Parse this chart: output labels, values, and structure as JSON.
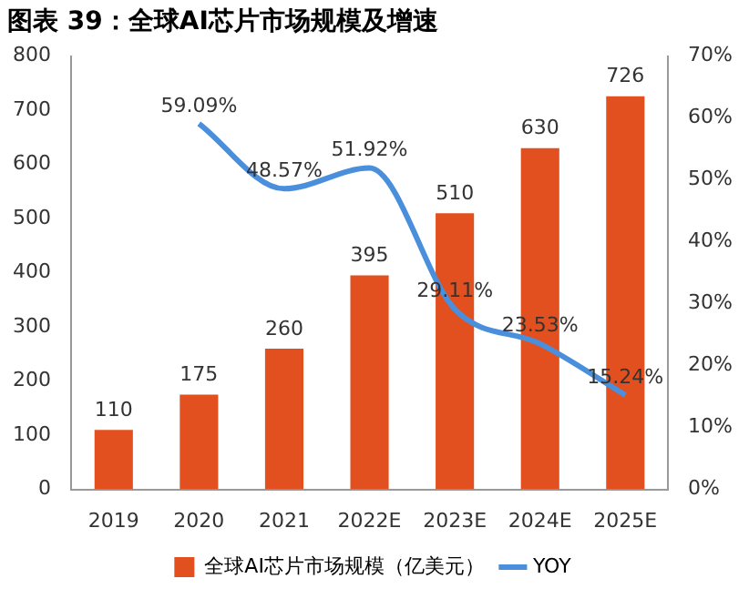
{
  "chart_data": {
    "type": "bar",
    "title": "图表 39：全球AI芯片市场规模及增速",
    "categories": [
      "2019",
      "2020",
      "2021",
      "2022E",
      "2023E",
      "2024E",
      "2025E"
    ],
    "series": [
      {
        "name": "全球AI芯片市场规模（亿美元）",
        "color": "#e2501f",
        "values": [
          110,
          175,
          260,
          395,
          510,
          630,
          726
        ],
        "value_labels": [
          "110",
          "175",
          "260",
          "395",
          "510",
          "630",
          "726"
        ]
      },
      {
        "name": "YOY",
        "type": "line",
        "axis": "y2",
        "color": "#4a8fdc",
        "values": [
          null,
          59.09,
          48.57,
          51.92,
          29.11,
          23.53,
          15.24
        ],
        "value_labels": [
          null,
          "59.09%",
          "48.57%",
          "51.92%",
          "29.11%",
          "23.53%",
          "15.24%"
        ]
      }
    ],
    "ylim": [
      0,
      800
    ],
    "yticks": [
      0,
      100,
      200,
      300,
      400,
      500,
      600,
      700,
      800
    ],
    "y2lim": [
      0,
      70
    ],
    "y2ticks": [
      {
        "value": 0,
        "label": "0%"
      },
      {
        "value": 10,
        "label": "10%"
      },
      {
        "value": 20,
        "label": "20%"
      },
      {
        "value": 30,
        "label": "30%"
      },
      {
        "value": 40,
        "label": "40%"
      },
      {
        "value": 50,
        "label": "50%"
      },
      {
        "value": 60,
        "label": "60%"
      },
      {
        "value": 70,
        "label": "70%"
      }
    ],
    "grid": false,
    "legend": "bottom",
    "marker": "none",
    "line_style": "solid"
  }
}
